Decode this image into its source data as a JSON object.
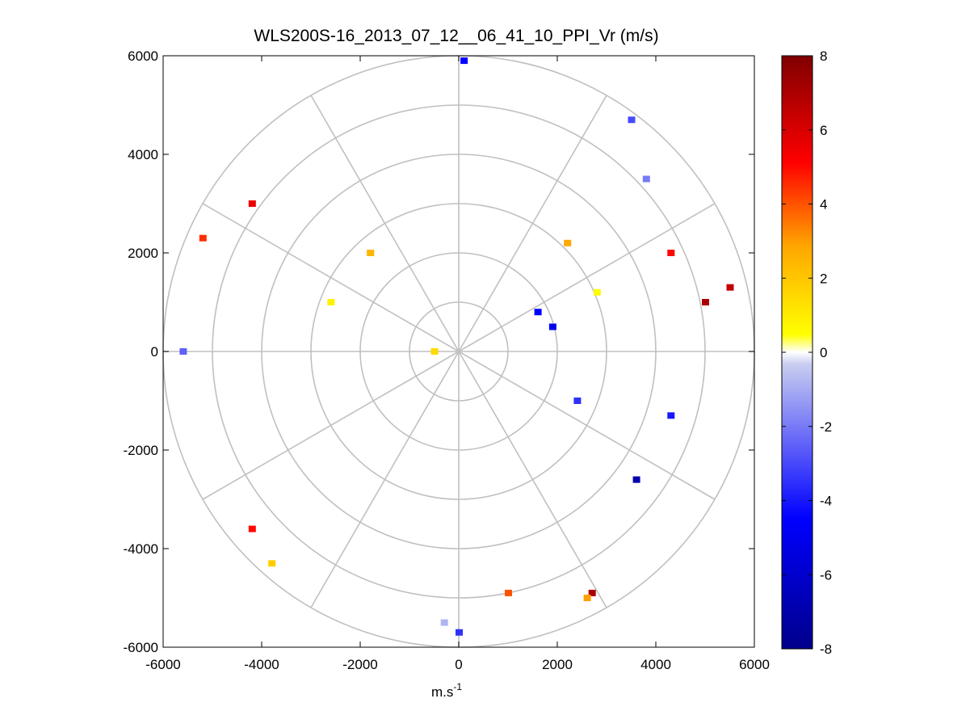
{
  "chart_data": {
    "type": "polar-scatter",
    "title": "WLS200S-16_2013_07_12__06_41_10_PPI_Vr (m/s)",
    "xlabel_base": "m.s",
    "xlabel_exp": "-1",
    "ylabel": "",
    "xlim": [
      -6000,
      6000
    ],
    "ylim": [
      -6000,
      6000
    ],
    "x_ticks": [
      -6000,
      -4000,
      -2000,
      0,
      2000,
      4000,
      6000
    ],
    "y_ticks": [
      -6000,
      -4000,
      -2000,
      0,
      2000,
      4000,
      6000
    ],
    "x_tick_labels": [
      "-6000",
      "-4000",
      "-2000",
      "0",
      "2000",
      "4000",
      "6000"
    ],
    "y_tick_labels": [
      "-6000",
      "-4000",
      "-2000",
      "0",
      "2000",
      "4000",
      "6000"
    ],
    "polar_grid": {
      "range_rings_m": [
        1000,
        2000,
        3000,
        4000,
        5000,
        6000
      ],
      "spokes_deg": [
        0,
        30,
        60,
        90,
        120,
        150,
        180,
        210,
        240,
        270,
        300,
        330
      ]
    },
    "colorbar": {
      "min": -8,
      "max": 8,
      "ticks": [
        8,
        6,
        4,
        2,
        0,
        -2,
        -4,
        -6,
        -8
      ],
      "tick_labels": [
        "8",
        "6",
        "4",
        "2",
        "0",
        "-2",
        "-4",
        "-6",
        "-8"
      ],
      "colormap": "blue-white-yellow-red"
    },
    "gates": [
      {
        "x": 1600,
        "y": 800,
        "v": -4.5
      },
      {
        "x": 1900,
        "y": 500,
        "v": -4.8
      },
      {
        "x": 2400,
        "y": -1000,
        "v": -3.5
      },
      {
        "x": 2200,
        "y": 2200,
        "v": 2.8
      },
      {
        "x": 2800,
        "y": 1200,
        "v": 0.6
      },
      {
        "x": -1800,
        "y": 2000,
        "v": 2.5
      },
      {
        "x": -2600,
        "y": 1000,
        "v": 0.8
      },
      {
        "x": -500,
        "y": 0,
        "v": 1.5
      },
      {
        "x": 100,
        "y": 5900,
        "v": -4.5
      },
      {
        "x": 3500,
        "y": 4700,
        "v": -3.0
      },
      {
        "x": -4200,
        "y": 3000,
        "v": 5.5
      },
      {
        "x": -5200,
        "y": 2300,
        "v": 4.5
      },
      {
        "x": 5000,
        "y": 1000,
        "v": 7.0
      },
      {
        "x": 5500,
        "y": 1300,
        "v": 6.5
      },
      {
        "x": 4300,
        "y": 2000,
        "v": 5.0
      },
      {
        "x": 3800,
        "y": 3500,
        "v": -2.0
      },
      {
        "x": 4300,
        "y": -1300,
        "v": -4.0
      },
      {
        "x": 3600,
        "y": -2600,
        "v": -7.0
      },
      {
        "x": 2700,
        "y": -4900,
        "v": 7.0
      },
      {
        "x": 2600,
        "y": -5000,
        "v": 3.0
      },
      {
        "x": -4200,
        "y": -3600,
        "v": 5.0
      },
      {
        "x": -3800,
        "y": -4300,
        "v": 1.8
      },
      {
        "x": -5600,
        "y": 0,
        "v": -2.5
      },
      {
        "x": 0,
        "y": -5700,
        "v": -3.5
      },
      {
        "x": -300,
        "y": -5500,
        "v": -0.8
      },
      {
        "x": 1000,
        "y": -4900,
        "v": 4.0
      }
    ]
  }
}
